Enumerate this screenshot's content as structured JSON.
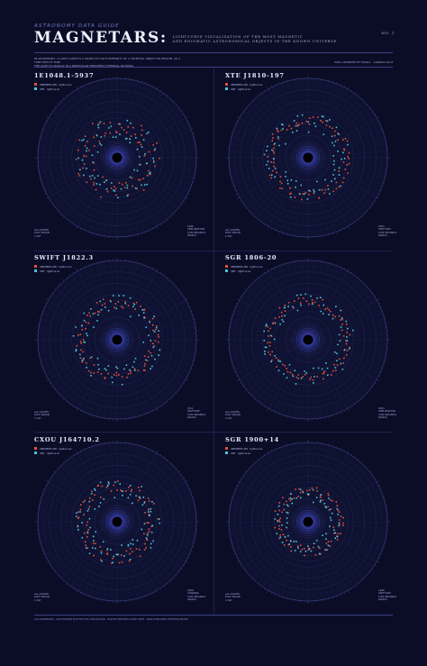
{
  "header": {
    "kicker": "ASTRONOMY DATA GUIDE",
    "title": "MAGNETARS:",
    "subtitle_line1": "LIGHTCURVE VISUALIZATION OF THE MOST MAGNETIC",
    "subtitle_line2": "AND ENIGMATIC ASTRONOMICAL OBJECTS IN THE KNOWN UNIVERSE",
    "number": "NO. 1"
  },
  "intro": {
    "line1": "IN ASTRONOMY, A LIGHT CURVE IS A GRAPH OF LIGHT INTENSITY OF A CELESTIAL OBJECT OR REGION, AS A FUNCTION OF TIME.",
    "line2": "THE LIGHT IS USUALLY IN A PARTICULAR FREQUENCY INTERVAL OR BAND."
  },
  "credit": "DATA COMPILED BY McGILL · CANADA 2014",
  "footer": "ALL MAGNETARS · LIGHTCURVES PLOTTED ON A POLAR GRID · RADIUS ENCODES COUNT RATE · ANGLE ENCODES ROTATION PHASE",
  "colors": {
    "background": "#0b0d26",
    "series_a": "#e0503a",
    "series_b": "#4ec3d8",
    "grid": "#3a4386",
    "accent": "#6f79c8"
  },
  "legend_labels": [
    "XMM/EPIC-PN · lightcurve",
    "XRT · lightcurve"
  ],
  "chart_data": [
    {
      "type": "scatter",
      "title": "1E1048.1-5937",
      "series": [
        {
          "name": "XMM/EPIC-PN · lightcurve",
          "color": "#e0503a",
          "count": 80,
          "r_mean": 0.42,
          "r_spread": 0.12
        },
        {
          "name": "XRT · lightcurve",
          "color": "#4ec3d8",
          "count": 70,
          "r_mean": 0.38,
          "r_spread": 0.13
        }
      ],
      "notes_left": [
        "ALL CURVES",
        "PLOT ORIGIN",
        "1 DAY"
      ],
      "notes_right": [
        "1996",
        "XMM-NEWTON",
        "5 KM SECONDS",
        "RADIUS"
      ]
    },
    {
      "type": "scatter",
      "title": "XTE J1810-197",
      "series": [
        {
          "name": "XMM/EPIC-PN · lightcurve",
          "color": "#e0503a",
          "count": 85,
          "r_mean": 0.48,
          "r_spread": 0.06
        },
        {
          "name": "XRT · lightcurve",
          "color": "#4ec3d8",
          "count": 75,
          "r_mean": 0.44,
          "r_spread": 0.12
        }
      ],
      "notes_left": [
        "ALL CURVES",
        "PLOT ORIGIN",
        "1 DAY"
      ],
      "notes_right": [
        "2003",
        "SWIFT/XRT",
        "5 KM SECONDS",
        "RADIUS"
      ]
    },
    {
      "type": "scatter",
      "title": "SWIFT J1822.3",
      "series": [
        {
          "name": "XMM/EPIC-PN · lightcurve",
          "color": "#e0503a",
          "count": 85,
          "r_mean": 0.47,
          "r_spread": 0.07
        },
        {
          "name": "XRT · lightcurve",
          "color": "#4ec3d8",
          "count": 75,
          "r_mean": 0.45,
          "r_spread": 0.12
        }
      ],
      "notes_left": [
        "ALL CURVES",
        "PLOT ORIGIN",
        "1 DAY"
      ],
      "notes_right": [
        "2011",
        "SWIFT/XRT",
        "5 KM SECONDS",
        "RADIUS"
      ]
    },
    {
      "type": "scatter",
      "title": "SGR 1806-20",
      "series": [
        {
          "name": "XMM/EPIC-PN · lightcurve",
          "color": "#e0503a",
          "count": 85,
          "r_mean": 0.49,
          "r_spread": 0.05
        },
        {
          "name": "XRT · lightcurve",
          "color": "#4ec3d8",
          "count": 75,
          "r_mean": 0.47,
          "r_spread": 0.11
        }
      ],
      "notes_left": [
        "ALL CURVES",
        "PLOT ORIGIN",
        "1 DAY"
      ],
      "notes_right": [
        "2004",
        "XMM-NEWTON",
        "5 KM SECONDS",
        "RADIUS"
      ]
    },
    {
      "type": "scatter",
      "title": "CXOU J164710.2",
      "series": [
        {
          "name": "XMM/EPIC-PN · lightcurve",
          "color": "#e0503a",
          "count": 90,
          "r_mean": 0.45,
          "r_spread": 0.08
        },
        {
          "name": "XRT · lightcurve",
          "color": "#4ec3d8",
          "count": 80,
          "r_mean": 0.42,
          "r_spread": 0.12
        }
      ],
      "notes_left": [
        "ALL CURVES",
        "PLOT ORIGIN",
        "1 DAY"
      ],
      "notes_right": [
        "2006",
        "CHANDRA",
        "5 KM SECONDS",
        "RADIUS"
      ]
    },
    {
      "type": "scatter",
      "title": "SGR 1900+14",
      "series": [
        {
          "name": "XMM/EPIC-PN · lightcurve",
          "color": "#e0503a",
          "count": 85,
          "r_mean": 0.38,
          "r_spread": 0.07
        },
        {
          "name": "XRT · lightcurve",
          "color": "#4ec3d8",
          "count": 70,
          "r_mean": 0.34,
          "r_spread": 0.09
        }
      ],
      "notes_left": [
        "ALL CURVES",
        "PLOT ORIGIN",
        "1 DAY"
      ],
      "notes_right": [
        "1998",
        "SWIFT/XRT",
        "5 KM SECONDS",
        "RADIUS"
      ]
    }
  ]
}
